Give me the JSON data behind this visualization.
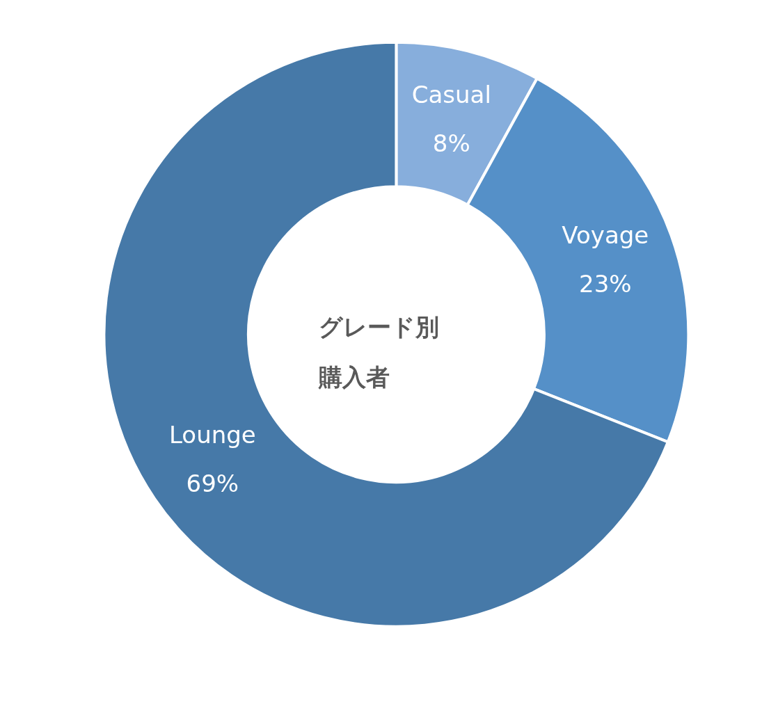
{
  "chart_data": {
    "type": "donut",
    "title": "グレード別購入者",
    "categories": [
      "Casual",
      "Voyage",
      "Lounge"
    ],
    "values": [
      8,
      23,
      69
    ],
    "value_labels": [
      "8%",
      "23%",
      "69%"
    ],
    "colors": [
      "#87aedc",
      "#5590c8",
      "#4679a8"
    ],
    "legend": false
  }
}
